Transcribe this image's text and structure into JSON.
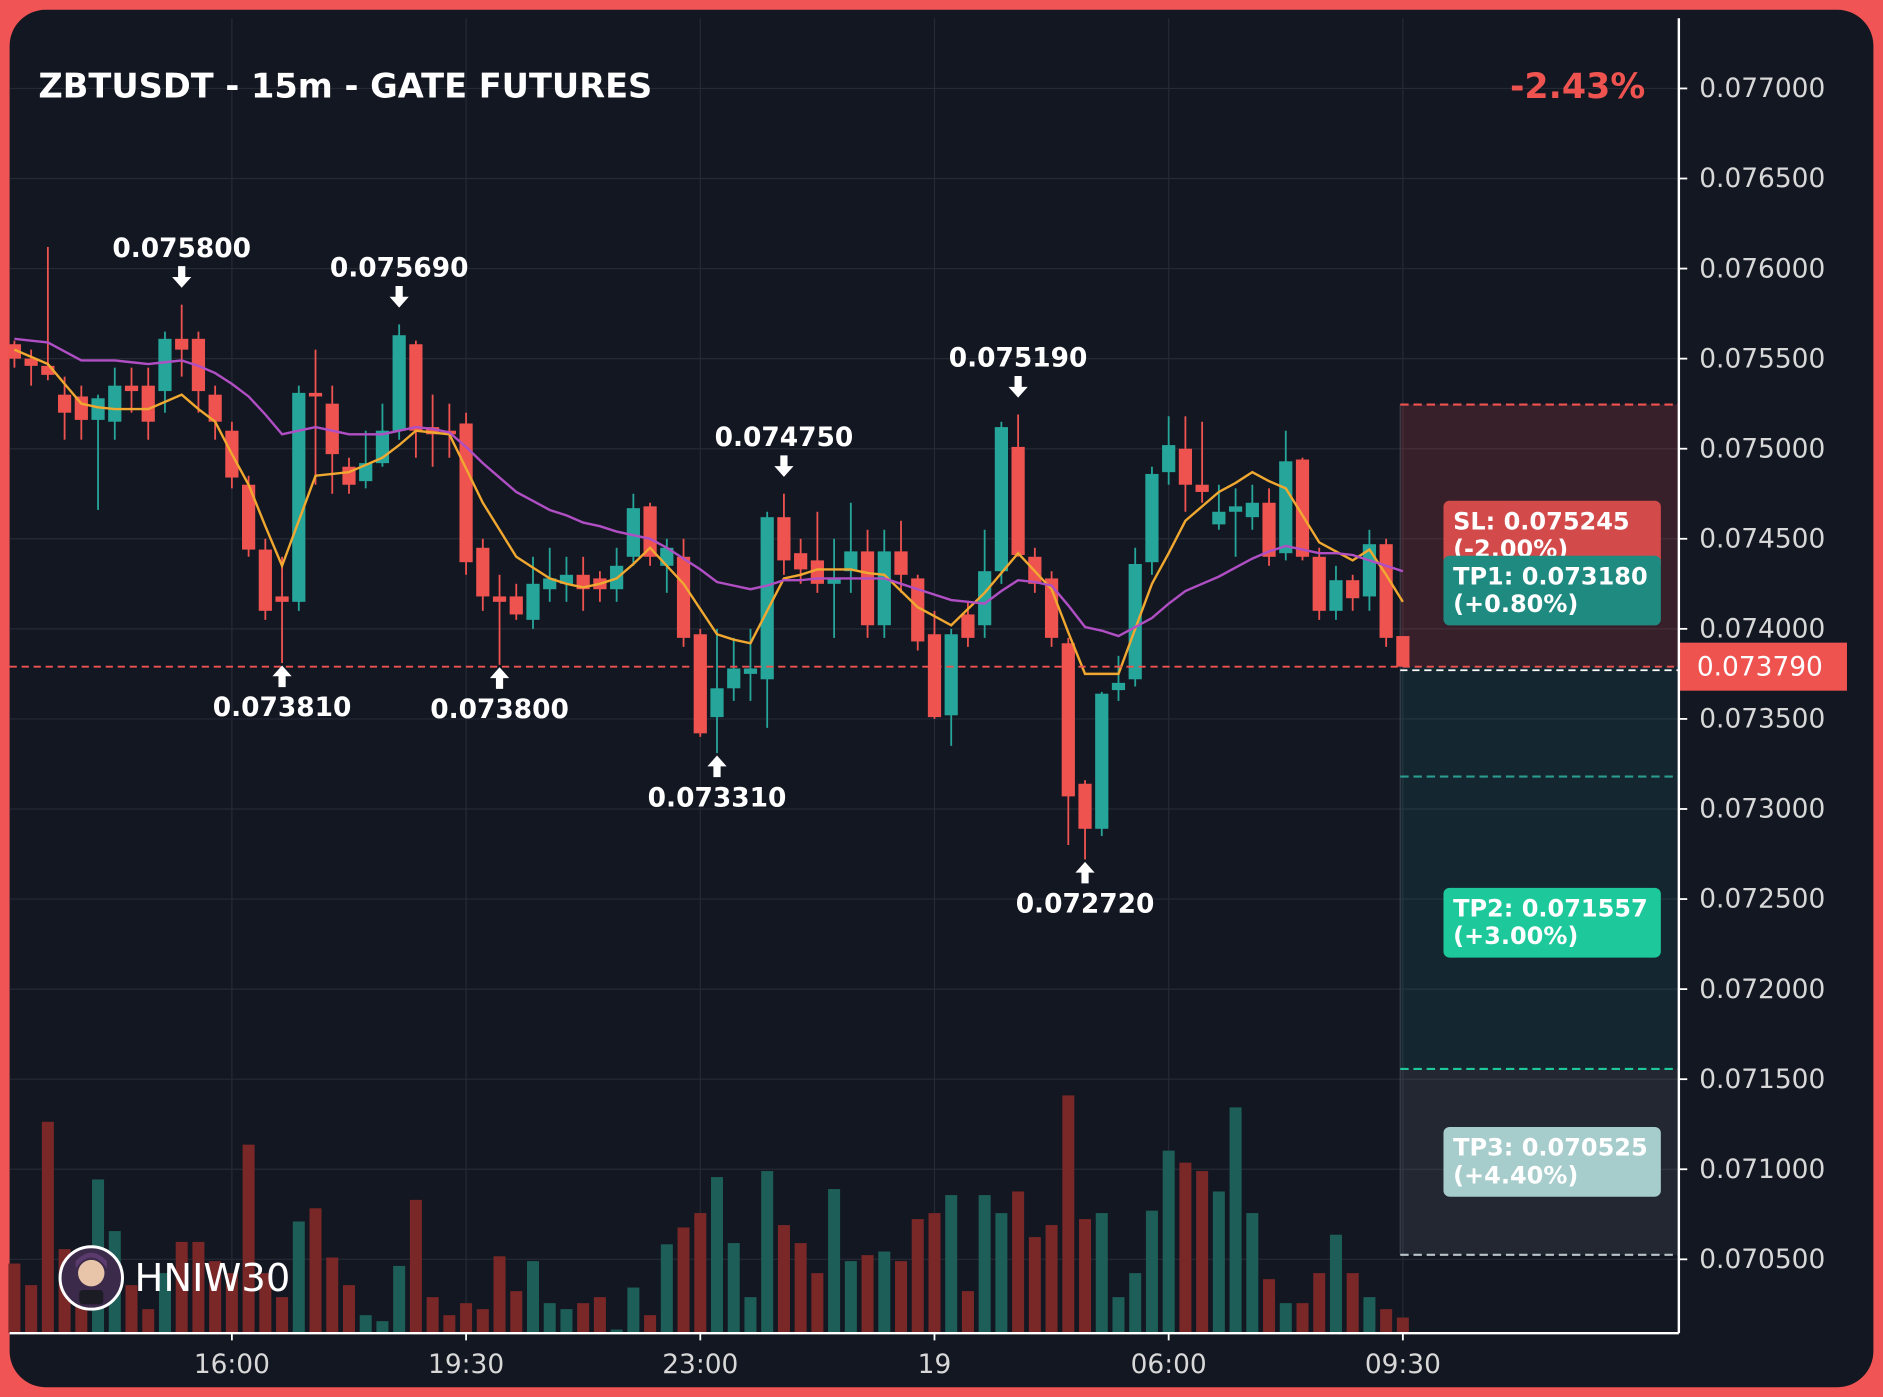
{
  "chart_data": {
    "type": "candlestick",
    "title": "ZBTUSDT - 15m - GATE FUTURES",
    "change": "-2.43%",
    "watermark": "HNIW30",
    "categories": [
      null,
      null,
      null,
      null,
      null,
      null,
      null,
      null,
      null,
      null,
      null,
      null,
      null,
      "16:00",
      null,
      null,
      null,
      null,
      null,
      null,
      null,
      null,
      null,
      null,
      null,
      null,
      null,
      "19:30",
      null,
      null,
      null,
      null,
      null,
      null,
      null,
      null,
      null,
      null,
      null,
      null,
      null,
      "23:00",
      null,
      null,
      null,
      null,
      null,
      null,
      null,
      null,
      null,
      null,
      null,
      null,
      null,
      "19",
      null,
      null,
      null,
      null,
      null,
      null,
      null,
      null,
      null,
      null,
      null,
      null,
      null,
      "06:00",
      null,
      null,
      null,
      null,
      null,
      null,
      null,
      null,
      null,
      null,
      null,
      null,
      null,
      "09:30"
    ],
    "open": [
      0.07558,
      0.0755,
      0.07546,
      0.0753,
      0.07529,
      0.07516,
      0.07515,
      0.07535,
      0.07535,
      0.07532,
      0.07561,
      0.07561,
      0.0753,
      0.0751,
      0.0748,
      0.07444,
      0.07418,
      0.07415,
      0.07531,
      0.07525,
      0.0749,
      0.07482,
      0.07492,
      0.0751,
      0.07558,
      0.07512,
      0.0751,
      0.07514,
      0.07445,
      0.07418,
      0.07418,
      0.07405,
      0.07422,
      0.07425,
      0.0743,
      0.07428,
      0.07422,
      0.0744,
      0.07468,
      0.07435,
      0.0744,
      0.07397,
      0.07351,
      0.07367,
      0.07375,
      0.07372,
      0.07462,
      0.07442,
      0.07438,
      0.07425,
      0.07432,
      0.07443,
      0.07402,
      0.07443,
      0.07428,
      0.07397,
      0.07352,
      0.07408,
      0.07402,
      0.07432,
      0.07501,
      0.0744,
      0.07428,
      0.07392,
      0.07314,
      0.07289,
      0.07366,
      0.07372,
      0.07437,
      0.07487,
      0.075,
      0.0748,
      0.07458,
      0.07465,
      0.07462,
      0.0747,
      0.07442,
      0.07494,
      0.0744,
      0.0741,
      0.07427,
      0.07418,
      0.07447,
      0.07396
    ],
    "high": [
      0.0756,
      0.07555,
      0.07612,
      0.0754,
      0.07535,
      0.0753,
      0.07545,
      0.07545,
      0.07545,
      0.07565,
      0.0758,
      0.07565,
      0.07535,
      0.07515,
      0.07485,
      0.0745,
      0.0744,
      0.07535,
      0.07555,
      0.07535,
      0.07495,
      0.0751,
      0.07525,
      0.07569,
      0.0756,
      0.0753,
      0.07525,
      0.0752,
      0.0745,
      0.0743,
      0.07425,
      0.0744,
      0.07445,
      0.0744,
      0.0744,
      0.07432,
      0.07445,
      0.07475,
      0.0747,
      0.0745,
      0.0745,
      0.074,
      0.074,
      0.07395,
      0.074,
      0.07465,
      0.07475,
      0.0745,
      0.07465,
      0.0745,
      0.0747,
      0.07455,
      0.07455,
      0.0746,
      0.0743,
      0.0741,
      0.074,
      0.07415,
      0.07455,
      0.07515,
      0.07519,
      0.07445,
      0.07432,
      0.07395,
      0.07316,
      0.07365,
      0.07385,
      0.07445,
      0.0749,
      0.07518,
      0.07518,
      0.07515,
      0.0748,
      0.07478,
      0.0748,
      0.07478,
      0.0751,
      0.07495,
      0.07445,
      0.07435,
      0.0743,
      0.07455,
      0.0745,
      0.07396
    ],
    "low": [
      0.07545,
      0.07535,
      0.07538,
      0.07505,
      0.07505,
      0.07466,
      0.07505,
      0.0752,
      0.07505,
      0.0752,
      0.0754,
      0.0752,
      0.07505,
      0.07478,
      0.0744,
      0.07405,
      0.07381,
      0.0741,
      0.0748,
      0.07475,
      0.07475,
      0.07478,
      0.0749,
      0.07505,
      0.07495,
      0.0749,
      0.07495,
      0.0743,
      0.0741,
      0.0738,
      0.07405,
      0.074,
      0.07415,
      0.07415,
      0.0741,
      0.07415,
      0.07415,
      0.07435,
      0.07435,
      0.0742,
      0.0739,
      0.0734,
      0.07331,
      0.0736,
      0.0736,
      0.07345,
      0.0743,
      0.07425,
      0.0742,
      0.07395,
      0.0742,
      0.07395,
      0.07395,
      0.0742,
      0.07388,
      0.0735,
      0.07335,
      0.0739,
      0.07395,
      0.07425,
      0.0744,
      0.0742,
      0.0739,
      0.0728,
      0.07272,
      0.07285,
      0.0736,
      0.07368,
      0.0743,
      0.0748,
      0.07465,
      0.0747,
      0.07455,
      0.0744,
      0.07455,
      0.07435,
      0.07438,
      0.07438,
      0.07405,
      0.07405,
      0.0741,
      0.0741,
      0.0739,
      0.07379
    ],
    "close": [
      0.0755,
      0.07546,
      0.07541,
      0.0752,
      0.07516,
      0.07528,
      0.07535,
      0.07532,
      0.07515,
      0.07561,
      0.07555,
      0.07532,
      0.07515,
      0.07484,
      0.07444,
      0.0741,
      0.07415,
      0.07531,
      0.07529,
      0.07497,
      0.0748,
      0.07492,
      0.0751,
      0.07563,
      0.0751,
      0.07508,
      0.07508,
      0.07437,
      0.07418,
      0.07415,
      0.07408,
      0.07425,
      0.07428,
      0.0743,
      0.07422,
      0.07422,
      0.07435,
      0.07467,
      0.0744,
      0.07445,
      0.07395,
      0.07342,
      0.07367,
      0.07378,
      0.07378,
      0.07462,
      0.07438,
      0.07433,
      0.07425,
      0.07428,
      0.07443,
      0.07402,
      0.07443,
      0.0743,
      0.07393,
      0.07351,
      0.07397,
      0.07395,
      0.07432,
      0.07512,
      0.07441,
      0.07425,
      0.07395,
      0.07307,
      0.07289,
      0.07364,
      0.0737,
      0.07436,
      0.07486,
      0.07502,
      0.0748,
      0.07476,
      0.07465,
      0.07468,
      0.0747,
      0.0744,
      0.07493,
      0.0744,
      0.0741,
      0.07427,
      0.07417,
      0.07447,
      0.07395,
      0.07379
    ],
    "volume": [
      58,
      40,
      176,
      70,
      50,
      128,
      85,
      40,
      20,
      50,
      76,
      76,
      60,
      50,
      157,
      50,
      30,
      93,
      104,
      63,
      40,
      15,
      10,
      56,
      111,
      30,
      15,
      25,
      20,
      64,
      35,
      60,
      25,
      20,
      25,
      30,
      3,
      38,
      15,
      74,
      88,
      100,
      130,
      75,
      30,
      135,
      90,
      75,
      50,
      120,
      60,
      65,
      68,
      60,
      95,
      100,
      115,
      35,
      115,
      100,
      118,
      80,
      90,
      198,
      95,
      100,
      30,
      50,
      102,
      152,
      142,
      135,
      118,
      188,
      100,
      45,
      25,
      25,
      50,
      82,
      50,
      30,
      20,
      13
    ],
    "up_color": "#26a69a",
    "down_color": "#ef5350",
    "up_volume_color": "#1d5f58",
    "down_volume_color": "#7a2727",
    "series": [
      {
        "color": "#f0a830",
        "values": [
          0.07555,
          0.07551,
          0.07547,
          0.07536,
          0.07525,
          0.07523,
          0.07522,
          0.07522,
          0.07522,
          0.07526,
          0.0753,
          0.07522,
          0.07515,
          0.07497,
          0.0748,
          0.07457,
          0.07435,
          0.0746,
          0.07485,
          0.07486,
          0.07487,
          0.07491,
          0.07495,
          0.07502,
          0.0751,
          0.07509,
          0.07508,
          0.07489,
          0.0747,
          0.07455,
          0.0744,
          0.07434,
          0.07428,
          0.07425,
          0.07423,
          0.07425,
          0.07428,
          0.07436,
          0.07445,
          0.07435,
          0.07425,
          0.07411,
          0.07397,
          0.07394,
          0.07392,
          0.0741,
          0.07428,
          0.0743,
          0.07433,
          0.07433,
          0.07433,
          0.07431,
          0.0743,
          0.07421,
          0.07412,
          0.07407,
          0.07402,
          0.07411,
          0.0742,
          0.07431,
          0.07442,
          0.07432,
          0.07422,
          0.07398,
          0.07375,
          0.07375,
          0.07375,
          0.074,
          0.07425,
          0.07442,
          0.0746,
          0.07468,
          0.07476,
          0.07481,
          0.07487,
          0.07482,
          0.07478,
          0.07463,
          0.07448,
          0.07443,
          0.07438,
          0.07444,
          0.0743,
          0.07415
        ]
      },
      {
        "color": "#b04fc4",
        "values": [
          0.07561,
          0.0756,
          0.07559,
          0.07554,
          0.07549,
          0.07549,
          0.07549,
          0.07548,
          0.07547,
          0.07548,
          0.07549,
          0.07546,
          0.07542,
          0.07536,
          0.07529,
          0.07519,
          0.07508,
          0.0751,
          0.07512,
          0.0751,
          0.07508,
          0.07508,
          0.07508,
          0.0751,
          0.07512,
          0.07511,
          0.07509,
          0.07501,
          0.07492,
          0.07484,
          0.07476,
          0.07471,
          0.07466,
          0.07463,
          0.07459,
          0.07457,
          0.07454,
          0.07452,
          0.0745,
          0.07445,
          0.07439,
          0.07433,
          0.07426,
          0.07424,
          0.07422,
          0.07424,
          0.07427,
          0.07427,
          0.07428,
          0.07428,
          0.07428,
          0.07428,
          0.07428,
          0.07425,
          0.07422,
          0.07419,
          0.07416,
          0.07415,
          0.07414,
          0.07421,
          0.07427,
          0.07426,
          0.07424,
          0.07413,
          0.07401,
          0.07399,
          0.07396,
          0.07401,
          0.07406,
          0.07414,
          0.07421,
          0.07425,
          0.07429,
          0.07434,
          0.07439,
          0.07443,
          0.07446,
          0.07444,
          0.07442,
          0.07442,
          0.07441,
          0.07438,
          0.07435,
          0.07432
        ]
      }
    ],
    "annotations": [
      {
        "label": "0.075800",
        "candle": 10,
        "value": 0.0758,
        "position": "high"
      },
      {
        "label": "0.075690",
        "candle": 23,
        "value": 0.07569,
        "position": "high"
      },
      {
        "label": "0.074750",
        "candle": 46,
        "value": 0.07475,
        "position": "high"
      },
      {
        "label": "0.075190",
        "candle": 60,
        "value": 0.07519,
        "position": "high"
      },
      {
        "label": "0.073810",
        "candle": 16,
        "value": 0.07381,
        "position": "low"
      },
      {
        "label": "0.073800",
        "candle": 29,
        "value": 0.0738,
        "position": "low"
      },
      {
        "label": "0.073310",
        "candle": 42,
        "value": 0.07331,
        "position": "low"
      },
      {
        "label": "0.072720",
        "candle": 64,
        "value": 0.07272,
        "position": "low"
      }
    ],
    "entry": {
      "label": "0.073790",
      "value": 0.07379,
      "color": "#ef5350"
    },
    "levels": [
      {
        "label": "SL: 0.075245",
        "change": "(-2.00%)",
        "value": 0.075245,
        "color": "#d24a4a",
        "line_color": "#ef5350"
      },
      {
        "label": "TP1: 0.073180",
        "change": "(+0.80%)",
        "value": 0.07318,
        "color": "#1f8a80",
        "line_color": "#2a9d90"
      },
      {
        "label": "TP2: 0.071557",
        "change": "(+3.00%)",
        "value": 0.071557,
        "color": "#1dc99b",
        "line_color": "#1dc99b"
      },
      {
        "label": "TP3: 0.070525",
        "change": "(+4.40%)",
        "value": 0.070525,
        "color": "#a6cccb",
        "line_color": "#b9c4c8"
      }
    ],
    "ylim": [
      0.07009,
      0.07739
    ],
    "yticks": [
      {
        "value": 0.077,
        "label": "0.077000"
      },
      {
        "value": 0.0765,
        "label": "0.076500"
      },
      {
        "value": 0.076,
        "label": "0.076000"
      },
      {
        "value": 0.0755,
        "label": "0.075500"
      },
      {
        "value": 0.075,
        "label": "0.075000"
      },
      {
        "value": 0.0745,
        "label": "0.074500"
      },
      {
        "value": 0.074,
        "label": "0.074000"
      },
      {
        "value": 0.0735,
        "label": "0.073500"
      },
      {
        "value": 0.073,
        "label": "0.073000"
      },
      {
        "value": 0.0725,
        "label": "0.072500"
      },
      {
        "value": 0.072,
        "label": "0.072000"
      },
      {
        "value": 0.0715,
        "label": "0.071500"
      },
      {
        "value": 0.071,
        "label": "0.071000"
      },
      {
        "value": 0.0705,
        "label": "0.070500"
      }
    ],
    "grid": true
  }
}
